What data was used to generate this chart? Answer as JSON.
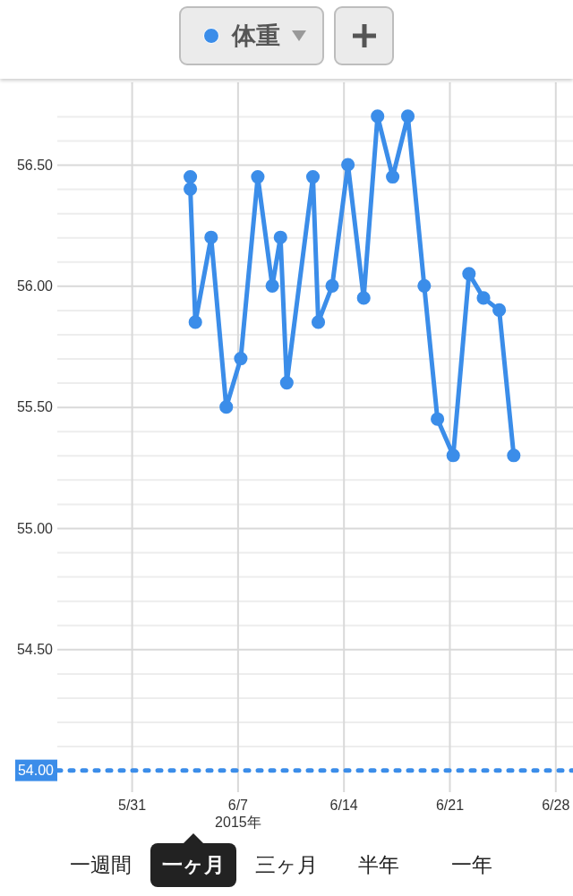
{
  "chart_data": {
    "type": "line",
    "x": [
      "2015-06-03T21:00",
      "2015-06-03T21:00",
      "2015-06-04T05:00",
      "2015-06-05T06:00",
      "2015-06-06T06:00",
      "2015-06-07T05:00",
      "2015-06-08T08:00",
      "2015-06-09T07:00",
      "2015-06-09T20:00",
      "2015-06-10T06:00",
      "2015-06-11T23:30",
      "2015-06-12T08:00",
      "2015-06-13T06:00",
      "2015-06-14T07:00",
      "2015-06-15T08:00",
      "2015-06-16T06:00",
      "2015-06-17T06:00",
      "2015-06-18T06:00",
      "2015-06-19T08:00",
      "2015-06-20T05:00",
      "2015-06-21T06:00",
      "2015-06-22T07:00",
      "2015-06-23T06:00",
      "2015-06-24T07:00",
      "2015-06-25T06:00"
    ],
    "series": [
      {
        "name": "体重",
        "color": "#3b8de9",
        "values": [
          56.45,
          56.4,
          55.85,
          56.2,
          55.5,
          55.7,
          56.45,
          56.0,
          56.2,
          55.6,
          56.45,
          55.85,
          56.0,
          56.5,
          55.95,
          56.7,
          56.45,
          56.7,
          56.0,
          55.45,
          55.3,
          56.05,
          55.95,
          55.9,
          55.3
        ]
      }
    ],
    "xlim": [
      "2015-05-26T02:00",
      "2015-06-29T04:00"
    ],
    "xticks": [
      {
        "value": "2015-05-31",
        "label": "5/31"
      },
      {
        "value": "2015-06-07",
        "label": "6/7\n2015年"
      },
      {
        "value": "2015-06-14",
        "label": "6/14"
      },
      {
        "value": "2015-06-21",
        "label": "6/21"
      },
      {
        "value": "2015-06-28",
        "label": "6/28"
      }
    ],
    "ylim": [
      53.91,
      56.84
    ],
    "yticks": [
      {
        "value": 54.1,
        "label": null
      },
      {
        "value": 54.2,
        "label": null
      },
      {
        "value": 54.3,
        "label": null
      },
      {
        "value": 54.4,
        "label": null
      },
      {
        "value": 54.5,
        "label": "54.50"
      },
      {
        "value": 54.6,
        "label": null
      },
      {
        "value": 54.7,
        "label": null
      },
      {
        "value": 54.8,
        "label": null
      },
      {
        "value": 54.9,
        "label": null
      },
      {
        "value": 55.0,
        "label": "55.00"
      },
      {
        "value": 55.1,
        "label": null
      },
      {
        "value": 55.2,
        "label": null
      },
      {
        "value": 55.3,
        "label": null
      },
      {
        "value": 55.4,
        "label": null
      },
      {
        "value": 55.5,
        "label": "55.50"
      },
      {
        "value": 55.6,
        "label": null
      },
      {
        "value": 55.7,
        "label": null
      },
      {
        "value": 55.8,
        "label": null
      },
      {
        "value": 55.9,
        "label": null
      },
      {
        "value": 56.0,
        "label": "56.00"
      },
      {
        "value": 56.1,
        "label": null
      },
      {
        "value": 56.2,
        "label": null
      },
      {
        "value": 56.3,
        "label": null
      },
      {
        "value": 56.4,
        "label": null
      },
      {
        "value": 56.5,
        "label": "56.50"
      },
      {
        "value": 56.6,
        "label": null
      },
      {
        "value": 56.7,
        "label": null
      }
    ],
    "grid": true,
    "legend": "top",
    "marker": "circle",
    "line_style": "solid",
    "ref_lines": [
      {
        "axis": "y",
        "value": 54,
        "label": "54.00",
        "color": "#3b8de9",
        "line_style": "dotted"
      }
    ],
    "annotations": [
      "一週間",
      "一ヶ月",
      "三ヶ月",
      "半年",
      "一年"
    ]
  }
}
